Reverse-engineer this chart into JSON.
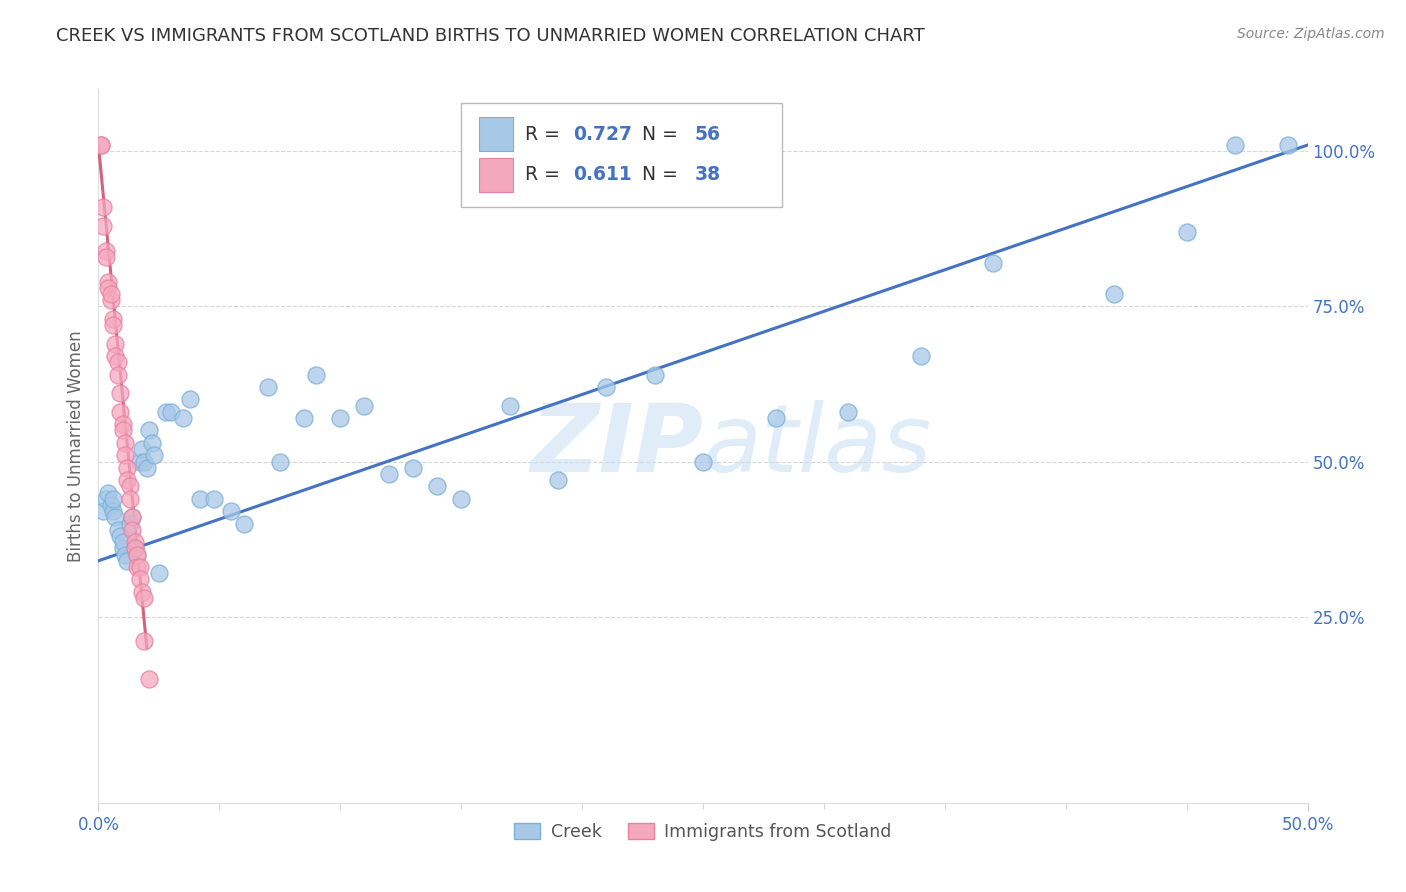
{
  "title": "CREEK VS IMMIGRANTS FROM SCOTLAND BIRTHS TO UNMARRIED WOMEN CORRELATION CHART",
  "source": "Source: ZipAtlas.com",
  "ylabel": "Births to Unmarried Women",
  "xlim": [
    0.0,
    0.5
  ],
  "ylim": [
    -0.05,
    1.1
  ],
  "xticks": [
    0.0,
    0.5
  ],
  "xticklabels": [
    "0.0%",
    "50.0%"
  ],
  "yticks": [
    0.25,
    0.5,
    0.75,
    1.0
  ],
  "yticklabels": [
    "25.0%",
    "50.0%",
    "75.0%",
    "100.0%"
  ],
  "creek_color": "#a8c8e8",
  "scotland_color": "#f4a8be",
  "creek_edge_color": "#7ab0d8",
  "scotland_edge_color": "#e880a0",
  "creek_line_color": "#4472c4",
  "scotland_line_color": "#d9607a",
  "creek_R": 0.727,
  "creek_N": 56,
  "scotland_R": 0.611,
  "scotland_N": 38,
  "background_color": "#ffffff",
  "grid_color": "#cccccc",
  "axis_label_color": "#4472c4",
  "title_color": "#333333",
  "source_color": "#888888",
  "watermark_color": "#ddeeff",
  "ylabel_color": "#666666",
  "creek_line_x": [
    0.0,
    0.5
  ],
  "creek_line_y": [
    0.34,
    1.01
  ],
  "scotland_line_x": [
    0.0,
    0.02
  ],
  "scotland_line_y": [
    1.01,
    0.2
  ],
  "creek_x": [
    0.002,
    0.003,
    0.004,
    0.005,
    0.006,
    0.006,
    0.007,
    0.008,
    0.009,
    0.01,
    0.01,
    0.011,
    0.012,
    0.013,
    0.014,
    0.015,
    0.016,
    0.017,
    0.018,
    0.019,
    0.02,
    0.021,
    0.022,
    0.023,
    0.025,
    0.028,
    0.03,
    0.035,
    0.038,
    0.042,
    0.048,
    0.055,
    0.06,
    0.07,
    0.075,
    0.085,
    0.09,
    0.1,
    0.11,
    0.12,
    0.13,
    0.14,
    0.15,
    0.17,
    0.19,
    0.21,
    0.23,
    0.25,
    0.28,
    0.31,
    0.34,
    0.37,
    0.42,
    0.45,
    0.47,
    0.492
  ],
  "creek_y": [
    0.42,
    0.44,
    0.45,
    0.43,
    0.42,
    0.44,
    0.41,
    0.39,
    0.38,
    0.36,
    0.37,
    0.35,
    0.34,
    0.4,
    0.41,
    0.36,
    0.35,
    0.5,
    0.52,
    0.5,
    0.49,
    0.55,
    0.53,
    0.51,
    0.32,
    0.58,
    0.58,
    0.57,
    0.6,
    0.44,
    0.44,
    0.42,
    0.4,
    0.62,
    0.5,
    0.57,
    0.64,
    0.57,
    0.59,
    0.48,
    0.49,
    0.46,
    0.44,
    0.59,
    0.47,
    0.62,
    0.64,
    0.5,
    0.57,
    0.58,
    0.67,
    0.82,
    0.77,
    0.87,
    1.01,
    1.01
  ],
  "scotland_x": [
    0.001,
    0.001,
    0.002,
    0.002,
    0.003,
    0.003,
    0.004,
    0.004,
    0.005,
    0.005,
    0.006,
    0.006,
    0.007,
    0.007,
    0.008,
    0.008,
    0.009,
    0.009,
    0.01,
    0.01,
    0.011,
    0.011,
    0.012,
    0.012,
    0.013,
    0.013,
    0.014,
    0.014,
    0.015,
    0.015,
    0.016,
    0.016,
    0.017,
    0.017,
    0.018,
    0.019,
    0.019,
    0.021
  ],
  "scotland_y": [
    1.01,
    1.01,
    0.91,
    0.88,
    0.84,
    0.83,
    0.79,
    0.78,
    0.76,
    0.77,
    0.73,
    0.72,
    0.69,
    0.67,
    0.66,
    0.64,
    0.61,
    0.58,
    0.56,
    0.55,
    0.53,
    0.51,
    0.49,
    0.47,
    0.46,
    0.44,
    0.41,
    0.39,
    0.37,
    0.36,
    0.35,
    0.33,
    0.33,
    0.31,
    0.29,
    0.28,
    0.21,
    0.15
  ],
  "figsize": [
    14.06,
    8.92
  ],
  "dpi": 100,
  "marker_size": 150,
  "marker_linewidth": 1.0
}
